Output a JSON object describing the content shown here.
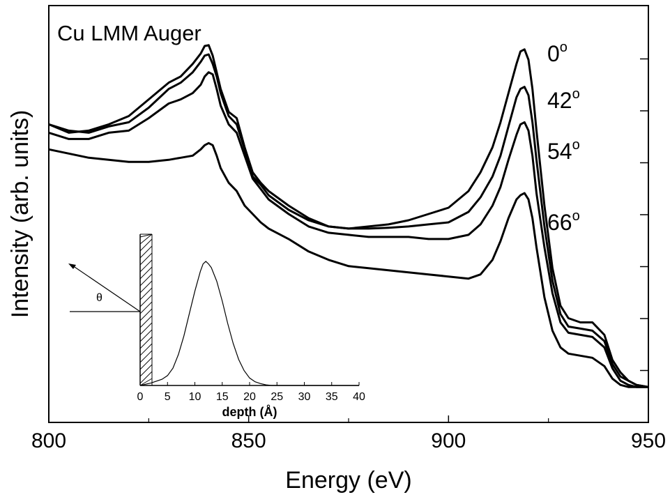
{
  "chart_data": {
    "type": "line",
    "title": "Cu LMM Auger",
    "xlabel": "Energy (eV)",
    "ylabel": "Intensity (arb. units)",
    "xlim": [
      800,
      950
    ],
    "x_ticks": [
      "800",
      "850",
      "900",
      "950"
    ],
    "ylim": [
      0,
      1
    ],
    "y_tick_labels_shown": false,
    "grid": false,
    "curve_labels": [
      {
        "text": "0",
        "sup": "o"
      },
      {
        "text": "42",
        "sup": "o"
      },
      {
        "text": "54",
        "sup": "o"
      },
      {
        "text": "66",
        "sup": "o"
      }
    ],
    "series": [
      {
        "x": [
          800,
          805,
          810,
          815,
          820,
          825,
          830,
          833,
          836,
          838,
          839,
          840,
          841,
          842,
          843,
          845,
          847,
          849,
          851,
          853,
          855,
          860,
          865,
          870,
          875,
          880,
          885,
          890,
          895,
          900,
          905,
          908,
          911,
          913,
          915,
          917,
          918,
          919,
          920,
          921,
          922,
          924,
          926,
          928,
          930,
          933,
          936,
          939,
          941,
          943,
          945,
          947,
          950
        ],
        "y": [
          0.715,
          0.695,
          0.7,
          0.715,
          0.735,
          0.775,
          0.815,
          0.83,
          0.86,
          0.885,
          0.903,
          0.905,
          0.88,
          0.84,
          0.8,
          0.745,
          0.73,
          0.66,
          0.6,
          0.575,
          0.555,
          0.52,
          0.49,
          0.47,
          0.465,
          0.47,
          0.475,
          0.485,
          0.5,
          0.515,
          0.555,
          0.6,
          0.66,
          0.72,
          0.79,
          0.86,
          0.89,
          0.895,
          0.87,
          0.8,
          0.7,
          0.52,
          0.37,
          0.28,
          0.25,
          0.24,
          0.24,
          0.21,
          0.15,
          0.12,
          0.1,
          0.09,
          0.085
        ]
      },
      {
        "x": [
          800,
          805,
          810,
          815,
          820,
          825,
          830,
          833,
          836,
          838,
          839,
          840,
          841,
          842,
          843,
          845,
          847,
          849,
          851,
          853,
          855,
          860,
          865,
          870,
          875,
          880,
          885,
          890,
          895,
          900,
          905,
          908,
          911,
          913,
          915,
          917,
          918,
          919,
          920,
          921,
          922,
          924,
          926,
          928,
          930,
          933,
          936,
          939,
          941,
          943,
          945,
          947,
          950
        ],
        "y": [
          0.715,
          0.7,
          0.695,
          0.71,
          0.72,
          0.755,
          0.8,
          0.815,
          0.84,
          0.865,
          0.88,
          0.883,
          0.86,
          0.83,
          0.79,
          0.735,
          0.715,
          0.655,
          0.59,
          0.57,
          0.545,
          0.51,
          0.485,
          0.47,
          0.465,
          0.465,
          0.467,
          0.47,
          0.475,
          0.48,
          0.505,
          0.54,
          0.59,
          0.64,
          0.71,
          0.78,
          0.8,
          0.805,
          0.785,
          0.72,
          0.63,
          0.47,
          0.34,
          0.26,
          0.23,
          0.225,
          0.22,
          0.195,
          0.14,
          0.11,
          0.1,
          0.09,
          0.085
        ]
      },
      {
        "x": [
          800,
          805,
          810,
          815,
          820,
          825,
          830,
          833,
          836,
          838,
          839,
          840,
          841,
          842,
          843,
          845,
          847,
          849,
          851,
          853,
          855,
          860,
          865,
          870,
          875,
          880,
          885,
          890,
          895,
          900,
          905,
          908,
          911,
          913,
          915,
          917,
          918,
          919,
          920,
          921,
          922,
          924,
          926,
          928,
          930,
          933,
          936,
          939,
          941,
          943,
          945,
          947,
          950
        ],
        "y": [
          0.695,
          0.68,
          0.68,
          0.695,
          0.7,
          0.73,
          0.765,
          0.775,
          0.79,
          0.81,
          0.83,
          0.84,
          0.835,
          0.8,
          0.76,
          0.715,
          0.695,
          0.64,
          0.585,
          0.56,
          0.535,
          0.5,
          0.47,
          0.455,
          0.45,
          0.445,
          0.445,
          0.445,
          0.44,
          0.44,
          0.45,
          0.475,
          0.52,
          0.565,
          0.63,
          0.69,
          0.715,
          0.72,
          0.7,
          0.64,
          0.55,
          0.42,
          0.31,
          0.24,
          0.215,
          0.21,
          0.205,
          0.18,
          0.13,
          0.1,
          0.09,
          0.085,
          0.085
        ]
      },
      {
        "x": [
          800,
          805,
          810,
          815,
          820,
          825,
          830,
          833,
          836,
          838,
          839,
          840,
          841,
          842,
          843,
          845,
          847,
          849,
          851,
          853,
          855,
          860,
          865,
          870,
          875,
          880,
          885,
          890,
          895,
          900,
          905,
          908,
          911,
          913,
          915,
          917,
          918,
          919,
          920,
          921,
          922,
          924,
          926,
          928,
          930,
          933,
          936,
          939,
          941,
          943,
          945,
          947,
          950
        ],
        "y": [
          0.655,
          0.645,
          0.635,
          0.63,
          0.625,
          0.625,
          0.63,
          0.635,
          0.64,
          0.655,
          0.665,
          0.67,
          0.665,
          0.64,
          0.61,
          0.575,
          0.555,
          0.52,
          0.5,
          0.48,
          0.465,
          0.44,
          0.41,
          0.39,
          0.375,
          0.37,
          0.365,
          0.36,
          0.355,
          0.35,
          0.345,
          0.355,
          0.39,
          0.435,
          0.49,
          0.535,
          0.545,
          0.55,
          0.535,
          0.49,
          0.42,
          0.3,
          0.22,
          0.18,
          0.165,
          0.16,
          0.155,
          0.135,
          0.105,
          0.09,
          0.085,
          0.085,
          0.085
        ]
      }
    ],
    "inset": {
      "type": "line",
      "xlabel": "depth (Å)",
      "x_ticks": [
        "0",
        "5",
        "10",
        "15",
        "20",
        "25",
        "30",
        "35",
        "40"
      ],
      "xlim": [
        0,
        40
      ],
      "angle_symbol": "θ",
      "series": [
        {
          "x": [
            0,
            2,
            4,
            5,
            6,
            7,
            8,
            9,
            10,
            11,
            11.5,
            12,
            12.5,
            13,
            14,
            15,
            16,
            17,
            18,
            19,
            20,
            21,
            22,
            23,
            24,
            25,
            30,
            40
          ],
          "y": [
            0,
            0.02,
            0.05,
            0.08,
            0.14,
            0.25,
            0.4,
            0.58,
            0.76,
            0.92,
            0.98,
            1.0,
            0.98,
            0.95,
            0.84,
            0.68,
            0.5,
            0.34,
            0.21,
            0.12,
            0.06,
            0.03,
            0.015,
            0.005,
            0,
            0,
            0,
            0
          ]
        }
      ]
    }
  }
}
